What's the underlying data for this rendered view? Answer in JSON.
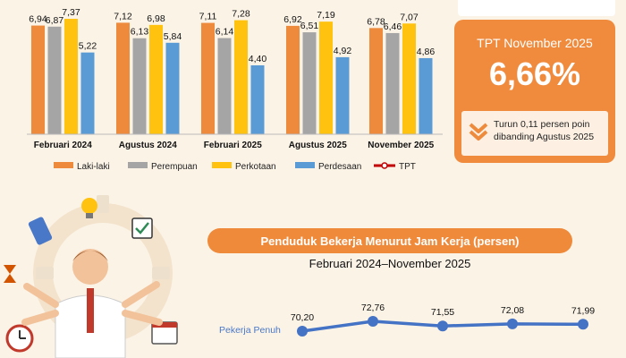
{
  "chart_data": [
    {
      "type": "bar",
      "categories": [
        "Februari 2024",
        "Agustus 2024",
        "Februari 2025",
        "Agustus 2025",
        "November 2025"
      ],
      "series": [
        {
          "name": "Laki-laki",
          "color": "#ee8a3c",
          "values": [
            6.94,
            7.12,
            7.11,
            6.92,
            6.78
          ],
          "labels": [
            "6,94",
            "7,12",
            "7,11",
            "6,92",
            "6,78"
          ]
        },
        {
          "name": "Perempuan",
          "color": "#a5a5a5",
          "values": [
            6.87,
            6.13,
            6.14,
            6.51,
            6.46
          ],
          "labels": [
            "6,87",
            "6,13",
            "6,14",
            "6,51",
            "6,46"
          ]
        },
        {
          "name": "Perkotaan",
          "color": "#ffc20e",
          "values": [
            7.37,
            6.98,
            7.28,
            7.19,
            7.07
          ],
          "labels": [
            "7,37",
            "6,98",
            "7,28",
            "7,19",
            "7,07"
          ]
        },
        {
          "name": "Perdesaan",
          "color": "#5b9bd5",
          "values": [
            5.22,
            5.84,
            4.4,
            4.92,
            4.86
          ],
          "labels": [
            "5,22",
            "5,84",
            "4,40",
            "4,92",
            "4,86"
          ]
        }
      ],
      "legend_extra": {
        "name": "TPT",
        "color": "#c00000"
      },
      "legend_position": "bottom"
    },
    {
      "type": "line",
      "title": "Penduduk Bekerja Menurut Jam Kerja (persen)",
      "subtitle": "Februari 2024–November 2025",
      "series": [
        {
          "name": "Pekerja Penuh",
          "color": "#4472c4",
          "values": [
            70.2,
            72.76,
            71.55,
            72.08,
            71.99
          ],
          "labels": [
            "70,20",
            "72,76",
            "71,55",
            "72,08",
            "71,99"
          ]
        }
      ]
    }
  ],
  "tpt_card": {
    "title": "TPT November 2025",
    "value": "6,66%",
    "note": "Turun 0,11 persen poin dibanding Agustus 2025",
    "icon": "double-chevron-down-icon"
  }
}
